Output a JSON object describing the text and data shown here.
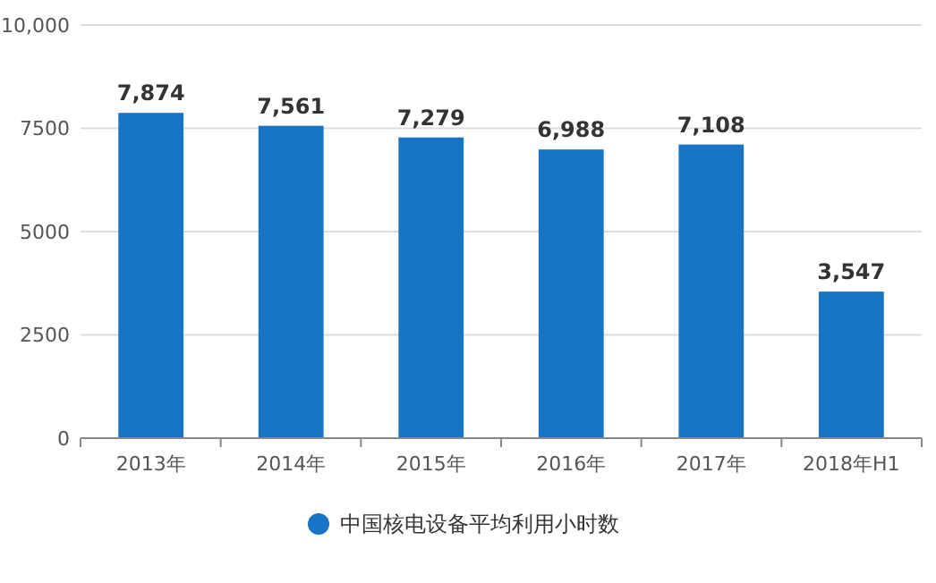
{
  "chart_data": {
    "type": "bar",
    "categories": [
      "2013年",
      "2014年",
      "2015年",
      "2016年",
      "2017年",
      "2018年H1"
    ],
    "series": [
      {
        "name": "中国核电设备平均利用小时数",
        "color": "#1874c4",
        "values": [
          7874,
          7561,
          7279,
          6988,
          7108,
          3547
        ],
        "value_labels": [
          "7,874",
          "7,561",
          "7,279",
          "6,988",
          "7,108",
          "3,547"
        ]
      }
    ],
    "ylim": [
      0,
      10000
    ],
    "yticks": [
      0,
      2500,
      5000,
      7500,
      {
        "value": 10000,
        "label": "10,000"
      }
    ],
    "grid": "y",
    "legend": "bottom"
  }
}
